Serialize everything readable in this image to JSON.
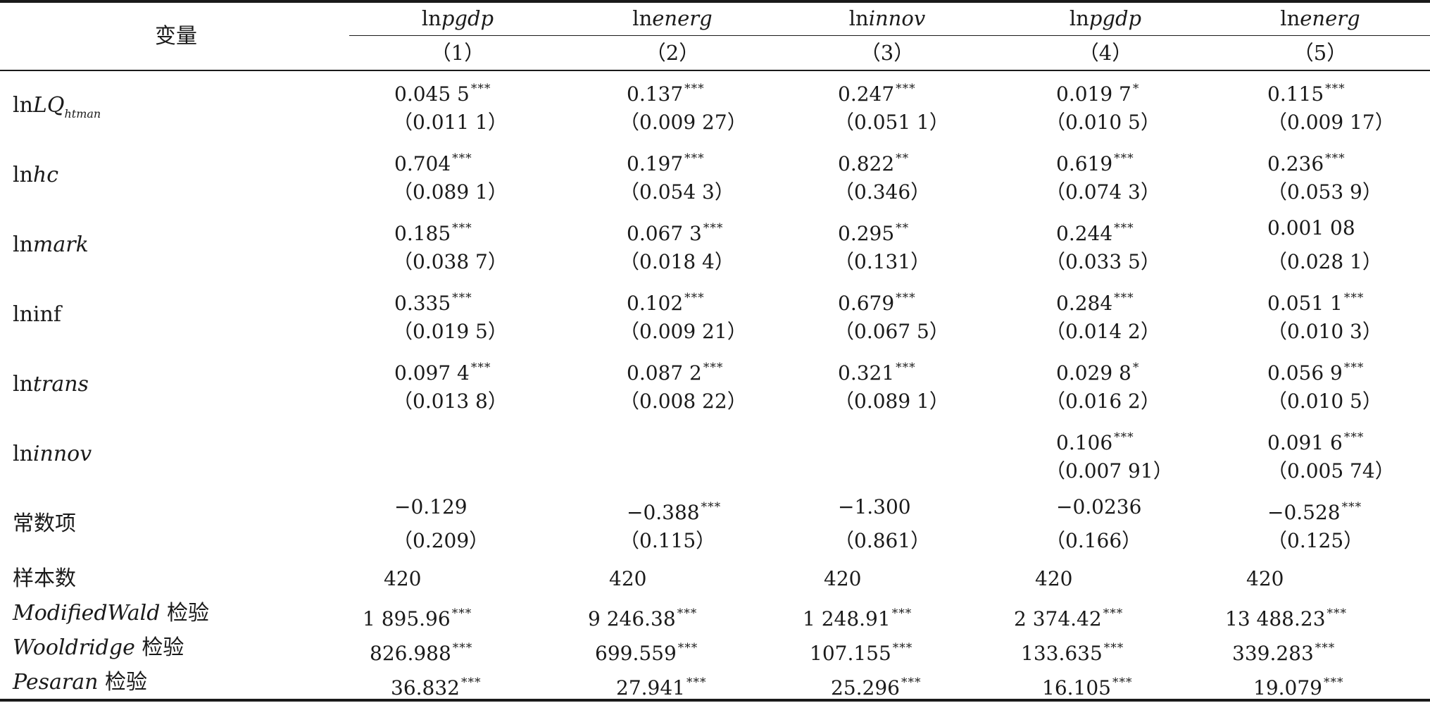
{
  "header": {
    "var_label": "变量",
    "columns": [
      {
        "dep_prefix": "ln",
        "dep": "pgdp",
        "num": "（1）"
      },
      {
        "dep_prefix": "ln",
        "dep": "energ",
        "num": "（2）"
      },
      {
        "dep_prefix": "ln",
        "dep": "innov",
        "num": "（3）"
      },
      {
        "dep_prefix": "ln",
        "dep": "pgdp",
        "num": "（4）"
      },
      {
        "dep_prefix": "ln",
        "dep": "energ",
        "num": "（5）"
      }
    ]
  },
  "rows": [
    {
      "label_prefix": "ln",
      "label_it": "LQ",
      "label_sub": "htman",
      "coef": [
        [
          "0.045 5",
          "***"
        ],
        [
          "0.137",
          "***"
        ],
        [
          "0.247",
          "***"
        ],
        [
          "0.019 7",
          "*"
        ],
        [
          "0.115",
          "***"
        ]
      ],
      "se": [
        "（0.011 1）",
        "（0.009 27）",
        "（0.051 1）",
        "（0.010 5）",
        "（0.009 17）"
      ]
    },
    {
      "label_prefix": "ln",
      "label_it": "hc",
      "label_sub": "",
      "coef": [
        [
          "0.704",
          "***"
        ],
        [
          "0.197",
          "***"
        ],
        [
          "0.822",
          "**"
        ],
        [
          "0.619",
          "***"
        ],
        [
          "0.236",
          "***"
        ]
      ],
      "se": [
        "（0.089 1）",
        "（0.054 3）",
        "（0.346）",
        "（0.074 3）",
        "（0.053 9）"
      ]
    },
    {
      "label_prefix": "ln",
      "label_it": "mark",
      "label_sub": "",
      "coef": [
        [
          "0.185",
          "***"
        ],
        [
          "0.067 3",
          "***"
        ],
        [
          "0.295",
          "**"
        ],
        [
          "0.244",
          "***"
        ],
        [
          "0.001 08",
          ""
        ]
      ],
      "se": [
        "（0.038 7）",
        "（0.018 4）",
        "（0.131）",
        "（0.033 5）",
        "（0.028 1）"
      ]
    },
    {
      "label_prefix": "lninf",
      "label_it": "",
      "label_sub": "",
      "coef": [
        [
          "0.335",
          "***"
        ],
        [
          "0.102",
          "***"
        ],
        [
          "0.679",
          "***"
        ],
        [
          "0.284",
          "***"
        ],
        [
          "0.051 1",
          "***"
        ]
      ],
      "se": [
        "（0.019 5）",
        "（0.009 21）",
        "（0.067 5）",
        "（0.014 2）",
        "（0.010 3）"
      ]
    },
    {
      "label_prefix": "ln",
      "label_it": "trans",
      "label_sub": "",
      "coef": [
        [
          "0.097 4",
          "***"
        ],
        [
          "0.087 2",
          "***"
        ],
        [
          "0.321",
          "***"
        ],
        [
          "0.029 8",
          "*"
        ],
        [
          "0.056 9",
          "***"
        ]
      ],
      "se": [
        "（0.013 8）",
        "（0.008 22）",
        "（0.089 1）",
        "（0.016 2）",
        "（0.010 5）"
      ]
    },
    {
      "label_prefix": "ln",
      "label_it": "innov",
      "label_sub": "",
      "coef": [
        [
          "",
          ""
        ],
        [
          "",
          ""
        ],
        [
          "",
          ""
        ],
        [
          "0.106",
          "***"
        ],
        [
          "0.091 6",
          "***"
        ]
      ],
      "se": [
        "",
        "",
        "",
        "（0.007 91）",
        "（0.005 74）"
      ]
    },
    {
      "label_prefix": "常数项",
      "label_it": "",
      "label_sub": "",
      "coef": [
        [
          "−0.129",
          ""
        ],
        [
          "−0.388",
          "***"
        ],
        [
          "−1.300",
          ""
        ],
        [
          "−0.0236",
          ""
        ],
        [
          "−0.528",
          "***"
        ]
      ],
      "se": [
        "（0.209）",
        "（0.115）",
        "（0.861）",
        "（0.166）",
        "（0.125）"
      ]
    }
  ],
  "stats": [
    {
      "label_it": "",
      "label_rest": "样本数",
      "values": [
        [
          "420",
          ""
        ],
        [
          "420",
          ""
        ],
        [
          "420",
          ""
        ],
        [
          "420",
          ""
        ],
        [
          "420",
          ""
        ]
      ]
    },
    {
      "label_it": "ModifiedWald",
      "label_rest": " 检验",
      "values": [
        [
          "1 895.96",
          "***"
        ],
        [
          "9 246.38",
          "***"
        ],
        [
          "1 248.91",
          "***"
        ],
        [
          "2 374.42",
          "***"
        ],
        [
          "13 488.23",
          "***"
        ]
      ]
    },
    {
      "label_it": "Wooldridge",
      "label_rest": " 检验",
      "values": [
        [
          "826.988",
          "***"
        ],
        [
          "699.559",
          "***"
        ],
        [
          "107.155",
          "***"
        ],
        [
          "133.635",
          "***"
        ],
        [
          "339.283",
          "***"
        ]
      ]
    },
    {
      "label_it": "Pesaran",
      "label_rest": " 检验",
      "values": [
        [
          "36.832",
          "***"
        ],
        [
          "27.941",
          "***"
        ],
        [
          "25.296",
          "***"
        ],
        [
          "16.105",
          "***"
        ],
        [
          "19.079",
          "***"
        ]
      ]
    }
  ]
}
